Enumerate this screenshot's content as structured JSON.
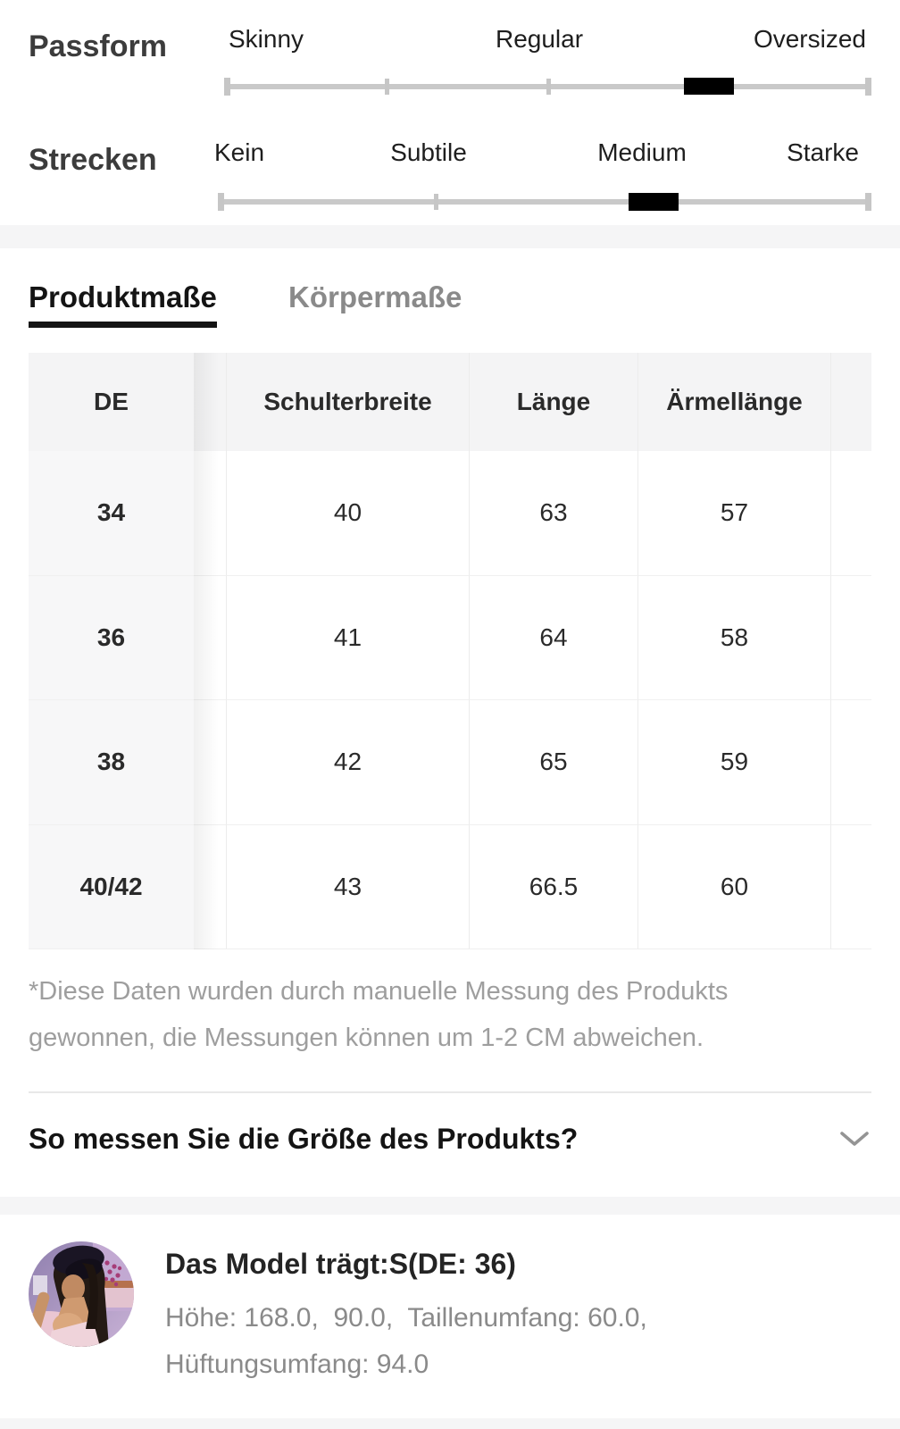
{
  "sliders": {
    "passform": {
      "label": "Passform",
      "options": [
        "Skinny",
        "Regular",
        "Oversized"
      ],
      "handle_position": 0.75
    },
    "strecken": {
      "label": "Strecken",
      "options": [
        "Kein",
        "Subtile",
        "Medium",
        "Starke"
      ],
      "handle_position": 0.667
    }
  },
  "tabs": {
    "product": "Produktmaße",
    "body": "Körpermaße"
  },
  "size_table": {
    "columns": [
      "DE",
      "Schulterbreite",
      "Länge",
      "Ärmellänge"
    ],
    "rows": [
      {
        "size": "34",
        "values": [
          "40",
          "63",
          "57"
        ]
      },
      {
        "size": "36",
        "values": [
          "41",
          "64",
          "58"
        ]
      },
      {
        "size": "38",
        "values": [
          "42",
          "65",
          "59"
        ]
      },
      {
        "size": "40/42",
        "values": [
          "43",
          "66.5",
          "60"
        ]
      }
    ]
  },
  "disclaimer": {
    "line1": "*Diese Daten wurden durch manuelle Messung des Produkts",
    "line2": "gewonnen, die Messungen können um 1-2 CM abweichen."
  },
  "measure_section": {
    "question": "So messen Sie die Größe des Produkts?",
    "expand_icon": "chevron-down"
  },
  "model_info": {
    "title": "Das Model trägt:S(DE: 36)",
    "measurements_line1": "Höhe: 168.0,  90.0,  Taillenumfang: 60.0,",
    "measurements_line2": "Hüftungsumfang: 94.0"
  },
  "colors": {
    "accent": "#000000",
    "track": "#c9c9c9",
    "band": "#f5f5f6",
    "inactive_tab": "#8a8a8a",
    "muted_text": "#9e9e9e",
    "table_border": "#ececec"
  }
}
